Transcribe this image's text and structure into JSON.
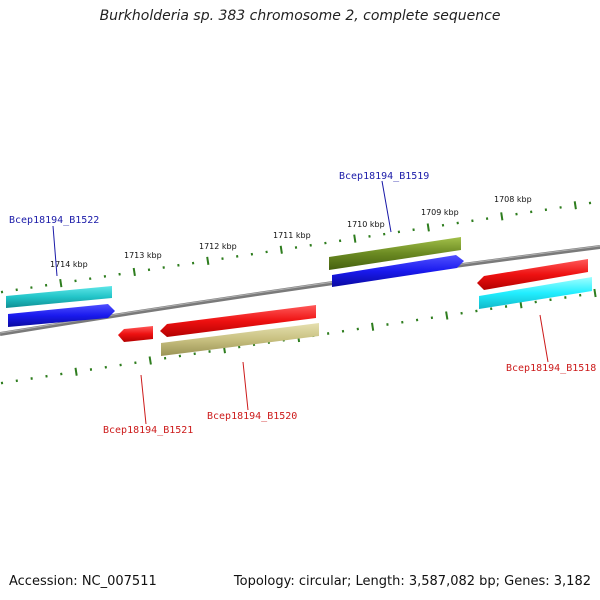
{
  "title": "Burkholderia sp. 383 chromosome 2, complete sequence",
  "footer": {
    "accession": "Accession: NC_007511",
    "summary": "Topology: circular; Length: 3,587,082 bp; Genes: 3,182"
  },
  "colors": {
    "backbone": "#7a7a7a",
    "ticks": "#2e7d1e",
    "label_forward": "#1a1aa8",
    "label_reverse": "#cc1a1a",
    "cyan": "#22c4c8",
    "blue": "#1a1aee",
    "red": "#ee1111",
    "olive": "#6b8a22",
    "khaki": "#c8c080"
  },
  "scale_labels": [
    "1714 kbp",
    "1713 kbp",
    "1712 kbp",
    "1711 kbp",
    "1710 kbp",
    "1709 kbp",
    "1708 kbp"
  ],
  "genes": [
    {
      "id": "Bcep18194_B1522",
      "strand": "forward"
    },
    {
      "id": "Bcep18194_B1519",
      "strand": "forward"
    },
    {
      "id": "Bcep18194_B1521",
      "strand": "reverse"
    },
    {
      "id": "Bcep18194_B1520",
      "strand": "reverse"
    },
    {
      "id": "Bcep18194_B1518",
      "strand": "reverse"
    }
  ]
}
